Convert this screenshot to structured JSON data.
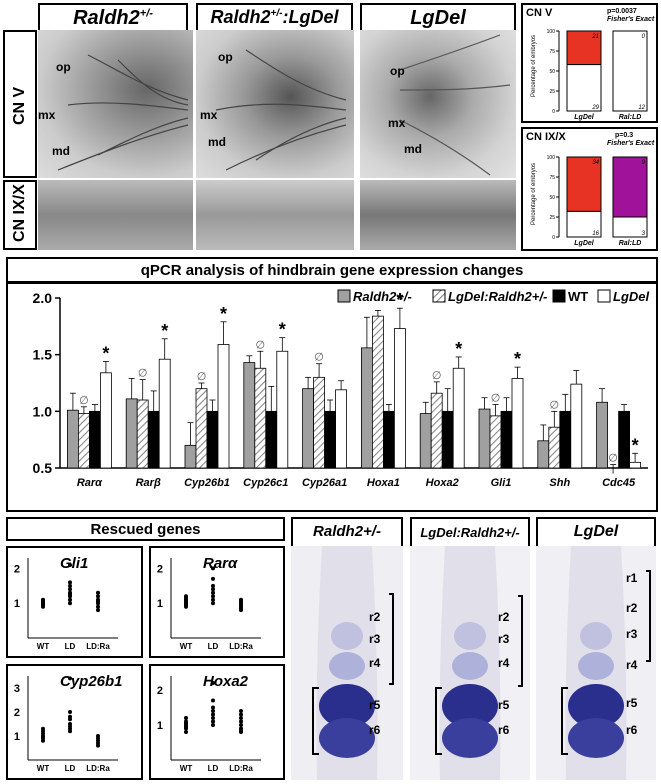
{
  "top": {
    "column_titles": [
      "Raldh2",
      "Raldh2",
      "LgDel"
    ],
    "column_title_sup": [
      "+/-",
      "+/-",
      ""
    ],
    "column_title_suffix": [
      "",
      ":LgDel",
      ""
    ],
    "row_labels": [
      "CN V",
      "CN IX/X"
    ],
    "annotations": {
      "op": "op",
      "mx": "mx",
      "md": "md"
    }
  },
  "fisher_cnv": {
    "title": "CN V",
    "p": "p=0.0037",
    "test": "Fisher's Exact",
    "ylabel": "Percentage of embryos",
    "yticks": [
      "100",
      "75",
      "50",
      "25",
      "0"
    ],
    "bars": [
      {
        "label": "LgDel",
        "top": 21,
        "bottom": 29,
        "top_color": "#e63323"
      },
      {
        "label": "Ral:LD",
        "top": 0,
        "bottom": 12,
        "top_color": "#e63323"
      }
    ]
  },
  "fisher_cnix": {
    "title": "CN IX/X",
    "p": "p=0.3",
    "test": "Fisher's Exact",
    "ylabel": "Percentage of embryos",
    "yticks": [
      "100",
      "75",
      "50",
      "25",
      "0"
    ],
    "bars": [
      {
        "label": "LgDel",
        "top": 34,
        "bottom": 16,
        "top_color": "#e63323"
      },
      {
        "label": "Ral:LD",
        "top": 9,
        "bottom": 3,
        "top_color": "#a0129a"
      }
    ]
  },
  "chart_data": {
    "type": "bar",
    "title": "qPCR analysis of hindbrain gene expression changes",
    "categories": [
      "Rarα",
      "Rarβ",
      "Cyp26b1",
      "Cyp26c1",
      "Cyp26a1",
      "Hoxa1",
      "Hoxa2",
      "Gli1",
      "Shh",
      "Cdc45"
    ],
    "ylim": [
      0.5,
      2.0
    ],
    "yticks": [
      "2.0",
      "1.5",
      "1.0",
      "0.5"
    ],
    "series": [
      {
        "name": "Raldh2+/-",
        "color": "#a0a0a0",
        "values": [
          1.01,
          1.11,
          0.7,
          1.43,
          1.2,
          1.56,
          0.98,
          1.02,
          0.74,
          1.08
        ],
        "errors": [
          0.15,
          0.18,
          0.2,
          0.06,
          0.1,
          0.27,
          0.1,
          0.1,
          0.14,
          0.12
        ]
      },
      {
        "name": "LgDel:Raldh2+/-",
        "color": "hatch",
        "values": [
          0.98,
          1.1,
          1.2,
          1.38,
          1.3,
          1.84,
          1.16,
          0.96,
          0.86,
          0.45
        ],
        "errors": [
          0.06,
          0.18,
          0.05,
          0.15,
          0.12,
          0.05,
          0.1,
          0.1,
          0.14,
          0.08
        ]
      },
      {
        "name": "WT",
        "color": "#000000",
        "values": [
          1.0,
          1.0,
          1.0,
          1.0,
          1.0,
          1.0,
          1.0,
          1.0,
          1.0,
          1.0
        ],
        "errors": [
          0.06,
          0.18,
          0.1,
          0.22,
          0.1,
          0.06,
          0.2,
          0.12,
          0.15,
          0.06
        ]
      },
      {
        "name": "LgDel",
        "color": "#ffffff",
        "values": [
          1.34,
          1.46,
          1.59,
          1.53,
          1.19,
          1.73,
          1.38,
          1.29,
          1.24,
          0.55
        ],
        "errors": [
          0.1,
          0.18,
          0.2,
          0.12,
          0.08,
          0.18,
          0.1,
          0.1,
          0.12,
          0.08
        ]
      }
    ],
    "markers": {
      "star": [
        0,
        1,
        2,
        3,
        5,
        6,
        7,
        9
      ],
      "rescue": [
        0,
        1,
        2,
        3,
        4,
        6,
        7,
        8,
        9
      ]
    },
    "legend_labels": [
      "Raldh2+/-",
      "LgDel:Raldh2+/-",
      "WT",
      "LgDel"
    ]
  },
  "rescued": {
    "title": "Rescued genes",
    "panels": [
      {
        "gene": "Gli1",
        "yticks": [
          "2",
          "1"
        ],
        "xlabels": [
          "WT",
          "LD",
          "LD:Ra"
        ]
      },
      {
        "gene": "Rarα",
        "yticks": [
          "2",
          "1"
        ],
        "xlabels": [
          "WT",
          "LD",
          "LD:Ra"
        ]
      },
      {
        "gene": "Cyp26b1",
        "yticks": [
          "3",
          "2",
          "1"
        ],
        "xlabels": [
          "WT",
          "LD",
          "LD:Ra"
        ]
      },
      {
        "gene": "Hoxa2",
        "yticks": [
          "2",
          "1"
        ],
        "xlabels": [
          "WT",
          "LD",
          "LD:Ra"
        ]
      }
    ]
  },
  "hindbrain": {
    "titles": [
      "Raldh2+/-",
      "LgDel:Raldh2+/-",
      "LgDel"
    ],
    "panel1": [
      "r2",
      "r3",
      "r4",
      "r5",
      "r6"
    ],
    "panel2": [
      "r2",
      "r3",
      "r4",
      "r5",
      "r6"
    ],
    "panel3": [
      "r1",
      "r2",
      "r3",
      "r4",
      "r5",
      "r6"
    ]
  },
  "symbols": {
    "star": "*",
    "rescue": "∅"
  }
}
